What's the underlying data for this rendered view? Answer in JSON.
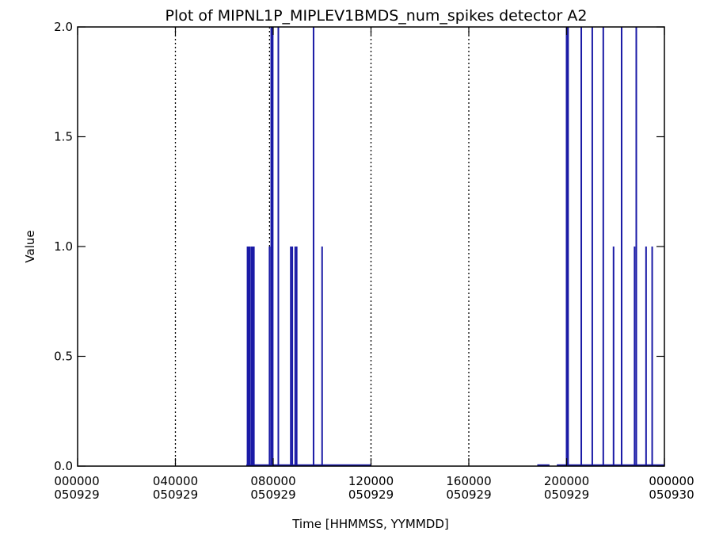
{
  "chart_data": {
    "type": "line",
    "title": "Plot of MIPNL1P_MIPLEV1BMDS_num_spikes detector A2",
    "xlabel": "Time [HHMMSS, YYMMDD]",
    "ylabel": "Value",
    "xlim": [
      0,
      24
    ],
    "ylim": [
      0.0,
      2.0
    ],
    "x_unit": "hours since 000000 050929",
    "x_ticks": [
      {
        "value": 0,
        "time": "000000",
        "date": "050929"
      },
      {
        "value": 4,
        "time": "040000",
        "date": "050929"
      },
      {
        "value": 8,
        "time": "080000",
        "date": "050929"
      },
      {
        "value": 12,
        "time": "120000",
        "date": "050929"
      },
      {
        "value": 16,
        "time": "160000",
        "date": "050929"
      },
      {
        "value": 20,
        "time": "200000",
        "date": "050929"
      },
      {
        "value": 24,
        "time": "000000",
        "date": "050930"
      }
    ],
    "y_ticks": [
      "0.0",
      "0.5",
      "1.0",
      "1.5",
      "2.0"
    ],
    "y_tick_values": [
      0.0,
      0.5,
      1.0,
      1.5,
      2.0
    ],
    "vertical_dotted_lines_x": [
      4,
      7.85,
      12,
      16,
      20
    ],
    "series": [
      {
        "color": "#1a1aa6",
        "baseline_segments": [
          [
            6.9,
            12.0
          ],
          [
            18.8,
            19.3
          ],
          [
            19.6,
            24.0
          ]
        ],
        "spikes": [
          {
            "x": 6.95,
            "y": 1.0
          },
          {
            "x": 7.0,
            "y": 1.0
          },
          {
            "x": 7.05,
            "y": 1.0
          },
          {
            "x": 7.12,
            "y": 1.0
          },
          {
            "x": 7.17,
            "y": 1.0
          },
          {
            "x": 7.21,
            "y": 1.0
          },
          {
            "x": 7.85,
            "y": 1.0
          },
          {
            "x": 7.92,
            "y": 2.0
          },
          {
            "x": 7.98,
            "y": 2.0
          },
          {
            "x": 8.21,
            "y": 2.0
          },
          {
            "x": 8.72,
            "y": 1.0
          },
          {
            "x": 8.78,
            "y": 1.0
          },
          {
            "x": 8.9,
            "y": 1.0
          },
          {
            "x": 8.96,
            "y": 1.0
          },
          {
            "x": 9.65,
            "y": 2.0
          },
          {
            "x": 10.0,
            "y": 1.0
          },
          {
            "x": 20.0,
            "y": 2.0
          },
          {
            "x": 20.06,
            "y": 2.0
          },
          {
            "x": 20.6,
            "y": 2.0
          },
          {
            "x": 21.05,
            "y": 2.0
          },
          {
            "x": 21.5,
            "y": 2.0
          },
          {
            "x": 21.92,
            "y": 1.0
          },
          {
            "x": 22.25,
            "y": 2.0
          },
          {
            "x": 22.78,
            "y": 1.0
          },
          {
            "x": 22.85,
            "y": 2.0
          },
          {
            "x": 23.25,
            "y": 1.0
          },
          {
            "x": 23.5,
            "y": 1.0
          }
        ]
      }
    ],
    "grid": false,
    "legend": "none"
  }
}
